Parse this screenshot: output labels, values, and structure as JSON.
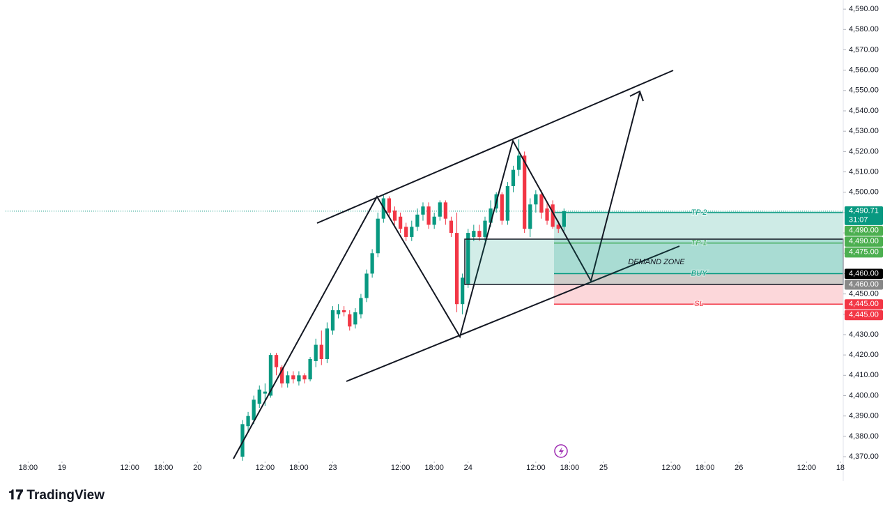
{
  "chart_data": {
    "type": "candlestick",
    "up_color": "#089981",
    "down_color": "#f23645",
    "x": [
      32,
      33,
      34,
      35,
      36,
      37,
      38,
      39,
      40,
      41,
      42,
      43,
      44,
      45,
      46,
      47,
      48,
      49,
      50,
      51,
      52,
      53,
      54,
      55,
      56,
      57,
      58,
      59,
      60,
      61,
      62,
      63,
      64,
      65,
      66,
      67,
      68,
      69,
      70,
      71,
      72,
      73,
      74,
      75,
      76,
      77,
      78,
      79,
      80,
      81,
      82,
      83,
      84,
      85,
      86,
      87,
      88,
      89
    ],
    "open": [
      4370,
      4385,
      4388,
      4396,
      4401,
      4400,
      4420,
      4414,
      4406,
      4410,
      4407,
      4410,
      4408,
      4417,
      4425,
      4418,
      4432,
      4440,
      4442,
      4440,
      4435,
      4440,
      4448,
      4460,
      4470,
      4487,
      4497,
      4491,
      4488,
      4483,
      4478,
      4483,
      4489,
      4493,
      4484,
      4488,
      4495,
      4486,
      4480,
      4445,
      4455,
      4478,
      4481,
      4478,
      4485,
      4492,
      4499,
      4486,
      4503,
      4511,
      4518,
      4482,
      4494,
      4499,
      4492,
      4494,
      4484,
      4483
    ],
    "high": [
      4388,
      4392,
      4400,
      4405,
      4406,
      4421,
      4421,
      4415,
      4412,
      4412,
      4412,
      4411,
      4419,
      4428,
      4432,
      4436,
      4444,
      4445,
      4444,
      4442,
      4443,
      4450,
      4462,
      4472,
      4490,
      4499,
      4498,
      4493,
      4490,
      4485,
      4486,
      4492,
      4495,
      4495,
      4490,
      4496,
      4496,
      4488,
      4490,
      4460,
      4482,
      4484,
      4484,
      4488,
      4496,
      4500,
      4500,
      4505,
      4513,
      4526,
      4520,
      4497,
      4501,
      4501,
      4495,
      4496,
      4486,
      4492
    ],
    "low": [
      4368,
      4382,
      4386,
      4394,
      4395,
      4399,
      4410,
      4404,
      4404,
      4406,
      4405,
      4406,
      4407,
      4414,
      4415,
      4416,
      4430,
      4438,
      4439,
      4432,
      4433,
      4438,
      4446,
      4458,
      4468,
      4485,
      4488,
      4484,
      4480,
      4476,
      4476,
      4481,
      4486,
      4482,
      4482,
      4486,
      4484,
      4478,
      4441,
      4440,
      4453,
      4476,
      4476,
      4476,
      4483,
      4490,
      4484,
      4484,
      4500,
      4508,
      4480,
      4478,
      4490,
      4487,
      4484,
      4482,
      4480,
      4481
    ],
    "close": [
      4386,
      4390,
      4398,
      4403,
      4402,
      4420,
      4414,
      4406,
      4410,
      4408,
      4410,
      4408,
      4418,
      4425,
      4418,
      4433,
      4442,
      4442,
      4441,
      4434,
      4441,
      4448,
      4460,
      4470,
      4487,
      4497,
      4490,
      4486,
      4482,
      4478,
      4483,
      4489,
      4493,
      4484,
      4488,
      4495,
      4487,
      4480,
      4445,
      4458,
      4480,
      4481,
      4478,
      4486,
      4492,
      4499,
      4486,
      4503,
      4511,
      4518,
      4482,
      4494,
      4499,
      4490,
      4486,
      4483,
      4482,
      4490.71
    ],
    "xlim": [
      -10,
      138.5
    ],
    "xticks": [
      {
        "value": -6,
        "label": "18:00"
      },
      {
        "value": 0,
        "label": "19"
      },
      {
        "value": 12,
        "label": "12:00"
      },
      {
        "value": 18,
        "label": "18:00"
      },
      {
        "value": 24,
        "label": "20"
      },
      {
        "value": 36,
        "label": "12:00"
      },
      {
        "value": 42,
        "label": "18:00"
      },
      {
        "value": 48,
        "label": "23"
      },
      {
        "value": 60,
        "label": "12:00"
      },
      {
        "value": 66,
        "label": "18:00"
      },
      {
        "value": 72,
        "label": "24"
      },
      {
        "value": 84,
        "label": "12:00"
      },
      {
        "value": 90,
        "label": "18:00"
      },
      {
        "value": 96,
        "label": "25"
      },
      {
        "value": 108,
        "label": "12:00"
      },
      {
        "value": 114,
        "label": "18:00"
      },
      {
        "value": 120,
        "label": "26"
      },
      {
        "value": 132,
        "label": "12:00"
      },
      {
        "value": 138,
        "label": "18"
      }
    ],
    "ylim": [
      4368.3,
      4594.5
    ],
    "yticks": [
      {
        "value": 4370,
        "label": "4,370.00"
      },
      {
        "value": 4380,
        "label": "4,380.00"
      },
      {
        "value": 4390,
        "label": "4,390.00"
      },
      {
        "value": 4400,
        "label": "4,400.00"
      },
      {
        "value": 4410,
        "label": "4,410.00"
      },
      {
        "value": 4420,
        "label": "4,420.00"
      },
      {
        "value": 4430,
        "label": "4,430.00"
      },
      {
        "value": 4440,
        "label": "4,440.00"
      },
      {
        "value": 4450,
        "label": "4,450.00"
      },
      {
        "value": 4460,
        "label": "4,460.00"
      },
      {
        "value": 4470,
        "label": "4,470.00"
      },
      {
        "value": 4480,
        "label": "4,480.00"
      },
      {
        "value": 4490,
        "label": "4,490.00"
      },
      {
        "value": 4500,
        "label": "4,500.00"
      },
      {
        "value": 4510,
        "label": "4,510.00"
      },
      {
        "value": 4520,
        "label": "4,520.00"
      },
      {
        "value": 4530,
        "label": "4,530.00"
      },
      {
        "value": 4540,
        "label": "4,540.00"
      },
      {
        "value": 4550,
        "label": "4,550.00"
      },
      {
        "value": 4560,
        "label": "4,560.00"
      },
      {
        "value": 4570,
        "label": "4,570.00"
      },
      {
        "value": 4580,
        "label": "4,580.00"
      },
      {
        "value": 4590,
        "label": "4,590.00"
      }
    ],
    "current_price": {
      "value": 4490.71,
      "label": "4,490.71",
      "countdown": "31:07",
      "color": "#089981"
    },
    "price_labels": [
      {
        "value": 4490,
        "label": "4,490.00",
        "color": "#4caf50"
      },
      {
        "value": 4490,
        "label": "4,490.00",
        "color": "#4caf50"
      },
      {
        "value": 4475,
        "label": "4,475.00",
        "color": "#4caf50"
      },
      {
        "value": 4460,
        "label": "4,460.00",
        "color": "#000000"
      },
      {
        "value": 4460,
        "label": "4,460.00",
        "color": "#888888"
      },
      {
        "value": 4445,
        "label": "4,445.00",
        "color": "#f23645"
      },
      {
        "value": 4445,
        "label": "4,445.00",
        "color": "#f23645"
      }
    ],
    "levels": [
      {
        "label": "TP 2",
        "value": 4490,
        "color": "#089981"
      },
      {
        "label": "TP 1",
        "value": 4475,
        "color": "#4caf50"
      },
      {
        "label": "BUY",
        "value": 4460,
        "color": "#089981"
      },
      {
        "label": "SL",
        "value": 4445,
        "color": "#f23645"
      }
    ],
    "annotation": "DEMAND ZONE",
    "brand": "TradingView"
  }
}
